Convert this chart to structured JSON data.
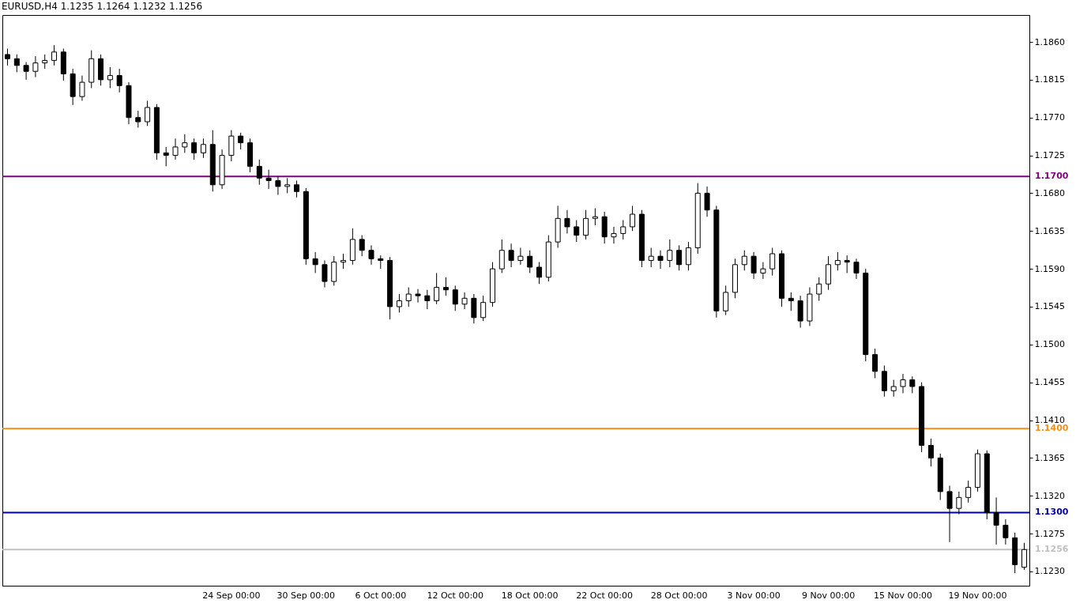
{
  "chart_data": {
    "type": "candlestick",
    "title": "EURUSD,H4  1.1235 1.1264 1.1232 1.1256",
    "categories": [
      null,
      null,
      null,
      null,
      null,
      null,
      null,
      null,
      null,
      null,
      null,
      null,
      null,
      null,
      null,
      null,
      null,
      null,
      null,
      null,
      null,
      null,
      null,
      null,
      "24 Sep 00:00",
      null,
      null,
      null,
      null,
      null,
      null,
      null,
      "30 Sep 00:00",
      null,
      null,
      null,
      null,
      null,
      null,
      null,
      "6 Oct 00:00",
      null,
      null,
      null,
      null,
      null,
      null,
      null,
      "12 Oct 00:00",
      null,
      null,
      null,
      null,
      null,
      null,
      null,
      "18 Oct 00:00",
      null,
      null,
      null,
      null,
      null,
      null,
      null,
      "22 Oct 00:00",
      null,
      null,
      null,
      null,
      null,
      null,
      null,
      "28 Oct 00:00",
      null,
      null,
      null,
      null,
      null,
      null,
      null,
      "3 Nov 00:00",
      null,
      null,
      null,
      null,
      null,
      null,
      null,
      "9 Nov 00:00",
      null,
      null,
      null,
      null,
      null,
      null,
      null,
      "15 Nov 00:00",
      null,
      null,
      null,
      null,
      null,
      null,
      null,
      "19 Nov 00:00",
      null,
      null,
      null,
      null,
      null
    ],
    "ohlc": [
      [
        1.1845,
        1.1852,
        1.1832,
        1.184
      ],
      [
        1.184,
        1.1845,
        1.1824,
        1.1832
      ],
      [
        1.1832,
        1.1836,
        1.1815,
        1.1825
      ],
      [
        1.1825,
        1.1843,
        1.1818,
        1.1835
      ],
      [
        1.1835,
        1.1845,
        1.1828,
        1.1838
      ],
      [
        1.1838,
        1.1856,
        1.1832,
        1.1848
      ],
      [
        1.1848,
        1.1852,
        1.1814,
        1.1822
      ],
      [
        1.1822,
        1.1828,
        1.1785,
        1.1795
      ],
      [
        1.1795,
        1.182,
        1.179,
        1.1812
      ],
      [
        1.1812,
        1.185,
        1.1805,
        1.184
      ],
      [
        1.184,
        1.1845,
        1.1808,
        1.1815
      ],
      [
        1.1815,
        1.183,
        1.1805,
        1.182
      ],
      [
        1.182,
        1.1828,
        1.18,
        1.1808
      ],
      [
        1.1808,
        1.1812,
        1.1762,
        1.177
      ],
      [
        1.177,
        1.1778,
        1.1758,
        1.1765
      ],
      [
        1.1765,
        1.179,
        1.176,
        1.1782
      ],
      [
        1.1782,
        1.1786,
        1.172,
        1.1728
      ],
      [
        1.1728,
        1.1735,
        1.1712,
        1.1725
      ],
      [
        1.1725,
        1.1745,
        1.172,
        1.1735
      ],
      [
        1.1735,
        1.175,
        1.1728,
        1.174
      ],
      [
        1.174,
        1.1745,
        1.172,
        1.1728
      ],
      [
        1.1728,
        1.1745,
        1.1722,
        1.1738
      ],
      [
        1.1738,
        1.1755,
        1.1682,
        1.169
      ],
      [
        1.169,
        1.1732,
        1.1685,
        1.1725
      ],
      [
        1.1725,
        1.1755,
        1.1718,
        1.1748
      ],
      [
        1.1748,
        1.1752,
        1.1732,
        1.174
      ],
      [
        1.174,
        1.1745,
        1.1705,
        1.1712
      ],
      [
        1.1712,
        1.172,
        1.169,
        1.1698
      ],
      [
        1.1698,
        1.1708,
        1.1685,
        1.1695
      ],
      [
        1.1695,
        1.17,
        1.1678,
        1.1688
      ],
      [
        1.1688,
        1.1698,
        1.168,
        1.169
      ],
      [
        1.169,
        1.1695,
        1.1675,
        1.1682
      ],
      [
        1.1682,
        1.1686,
        1.1595,
        1.1602
      ],
      [
        1.1602,
        1.161,
        1.1585,
        1.1595
      ],
      [
        1.1595,
        1.16,
        1.1568,
        1.1575
      ],
      [
        1.1575,
        1.1605,
        1.157,
        1.1598
      ],
      [
        1.1598,
        1.1608,
        1.159,
        1.16
      ],
      [
        1.16,
        1.1638,
        1.1595,
        1.1625
      ],
      [
        1.1625,
        1.163,
        1.1605,
        1.1612
      ],
      [
        1.1612,
        1.1618,
        1.1595,
        1.1602
      ],
      [
        1.1602,
        1.1606,
        1.159,
        1.16
      ],
      [
        1.16,
        1.1604,
        1.153,
        1.1545
      ],
      [
        1.1545,
        1.156,
        1.1538,
        1.1552
      ],
      [
        1.1552,
        1.1568,
        1.1545,
        1.156
      ],
      [
        1.156,
        1.1566,
        1.155,
        1.1558
      ],
      [
        1.1558,
        1.1565,
        1.1542,
        1.1552
      ],
      [
        1.1552,
        1.1585,
        1.1548,
        1.1568
      ],
      [
        1.1568,
        1.158,
        1.1558,
        1.1565
      ],
      [
        1.1565,
        1.157,
        1.154,
        1.1548
      ],
      [
        1.1548,
        1.1562,
        1.1542,
        1.1555
      ],
      [
        1.1555,
        1.156,
        1.1525,
        1.1532
      ],
      [
        1.1532,
        1.1558,
        1.1528,
        1.155
      ],
      [
        1.155,
        1.1598,
        1.1545,
        1.159
      ],
      [
        1.159,
        1.1625,
        1.1585,
        1.1612
      ],
      [
        1.1612,
        1.162,
        1.1592,
        1.16
      ],
      [
        1.16,
        1.1615,
        1.1595,
        1.1605
      ],
      [
        1.1605,
        1.1612,
        1.1585,
        1.1592
      ],
      [
        1.1592,
        1.1598,
        1.1572,
        1.158
      ],
      [
        1.158,
        1.163,
        1.1575,
        1.1622
      ],
      [
        1.1622,
        1.1665,
        1.1615,
        1.165
      ],
      [
        1.165,
        1.166,
        1.1632,
        1.164
      ],
      [
        1.164,
        1.1648,
        1.1622,
        1.163
      ],
      [
        1.163,
        1.166,
        1.1625,
        1.165
      ],
      [
        1.165,
        1.1662,
        1.1642,
        1.1652
      ],
      [
        1.1652,
        1.1658,
        1.162,
        1.1628
      ],
      [
        1.1628,
        1.164,
        1.162,
        1.1632
      ],
      [
        1.1632,
        1.1648,
        1.1625,
        1.164
      ],
      [
        1.164,
        1.1665,
        1.1635,
        1.1655
      ],
      [
        1.1655,
        1.166,
        1.1592,
        1.16
      ],
      [
        1.16,
        1.1615,
        1.1592,
        1.1605
      ],
      [
        1.1605,
        1.1612,
        1.159,
        1.16
      ],
      [
        1.16,
        1.1625,
        1.1592,
        1.1612
      ],
      [
        1.1612,
        1.1618,
        1.1588,
        1.1595
      ],
      [
        1.1595,
        1.1622,
        1.1588,
        1.1615
      ],
      [
        1.1615,
        1.1692,
        1.1608,
        1.168
      ],
      [
        1.168,
        1.1688,
        1.1652,
        1.166
      ],
      [
        1.166,
        1.1665,
        1.1532,
        1.154
      ],
      [
        1.154,
        1.157,
        1.1535,
        1.1562
      ],
      [
        1.1562,
        1.1602,
        1.1555,
        1.1595
      ],
      [
        1.1595,
        1.1612,
        1.1588,
        1.1605
      ],
      [
        1.1605,
        1.161,
        1.1578,
        1.1585
      ],
      [
        1.1585,
        1.1598,
        1.1578,
        1.159
      ],
      [
        1.159,
        1.1615,
        1.1582,
        1.1608
      ],
      [
        1.1608,
        1.1612,
        1.1545,
        1.1555
      ],
      [
        1.1555,
        1.1562,
        1.154,
        1.1552
      ],
      [
        1.1552,
        1.1558,
        1.152,
        1.1528
      ],
      [
        1.1528,
        1.1568,
        1.1522,
        1.156
      ],
      [
        1.156,
        1.158,
        1.1552,
        1.1572
      ],
      [
        1.1572,
        1.1605,
        1.1565,
        1.1595
      ],
      [
        1.1595,
        1.161,
        1.1588,
        1.16
      ],
      [
        1.16,
        1.1606,
        1.1585,
        1.1598
      ],
      [
        1.1598,
        1.1602,
        1.1578,
        1.1585
      ],
      [
        1.1585,
        1.159,
        1.148,
        1.1488
      ],
      [
        1.1488,
        1.1495,
        1.146,
        1.1468
      ],
      [
        1.1468,
        1.1475,
        1.1438,
        1.1445
      ],
      [
        1.1445,
        1.1458,
        1.1438,
        1.145
      ],
      [
        1.145,
        1.1465,
        1.1442,
        1.1458
      ],
      [
        1.1458,
        1.1462,
        1.1442,
        1.145
      ],
      [
        1.145,
        1.1455,
        1.1372,
        1.138
      ],
      [
        1.138,
        1.1388,
        1.1355,
        1.1365
      ],
      [
        1.1365,
        1.137,
        1.1315,
        1.1325
      ],
      [
        1.1325,
        1.1332,
        1.1265,
        1.1305
      ],
      [
        1.1305,
        1.1325,
        1.1298,
        1.1318
      ],
      [
        1.1318,
        1.1338,
        1.1312,
        1.133
      ],
      [
        1.133,
        1.1375,
        1.1325,
        1.137
      ],
      [
        1.137,
        1.1374,
        1.1292,
        1.13
      ],
      [
        1.13,
        1.1318,
        1.1262,
        1.1285
      ],
      [
        1.1285,
        1.1292,
        1.1262,
        1.127
      ],
      [
        1.127,
        1.1276,
        1.1228,
        1.1238
      ],
      [
        1.1235,
        1.1264,
        1.1232,
        1.1256
      ]
    ],
    "ylim": [
      1.1213,
      1.1892
    ],
    "yticks": [
      {
        "value": 1.123,
        "label": "1.1230"
      },
      {
        "value": 1.1275,
        "label": "1.1275"
      },
      {
        "value": 1.132,
        "label": "1.1320"
      },
      {
        "value": 1.1365,
        "label": "1.1365"
      },
      {
        "value": 1.141,
        "label": "1.1410"
      },
      {
        "value": 1.1455,
        "label": "1.1455"
      },
      {
        "value": 1.15,
        "label": "1.1500"
      },
      {
        "value": 1.1545,
        "label": "1.1545"
      },
      {
        "value": 1.159,
        "label": "1.1590"
      },
      {
        "value": 1.1635,
        "label": "1.1635"
      },
      {
        "value": 1.168,
        "label": "1.1680"
      },
      {
        "value": 1.1725,
        "label": "1.1725"
      },
      {
        "value": 1.177,
        "label": "1.1770"
      },
      {
        "value": 1.1815,
        "label": "1.1815"
      },
      {
        "value": 1.186,
        "label": "1.1860"
      }
    ],
    "ref_lines": [
      {
        "axis": "y",
        "value": 1.17,
        "label": "1.1700",
        "color": "#800080"
      },
      {
        "axis": "y",
        "value": 1.14,
        "label": "1.1400",
        "color": "#f0901c"
      },
      {
        "axis": "y",
        "value": 1.13,
        "label": "1.1300",
        "color": "#0000a0"
      },
      {
        "axis": "y",
        "value": 1.1256,
        "label": "1.1256",
        "color": "#c0c0c0"
      }
    ],
    "grid": false
  }
}
